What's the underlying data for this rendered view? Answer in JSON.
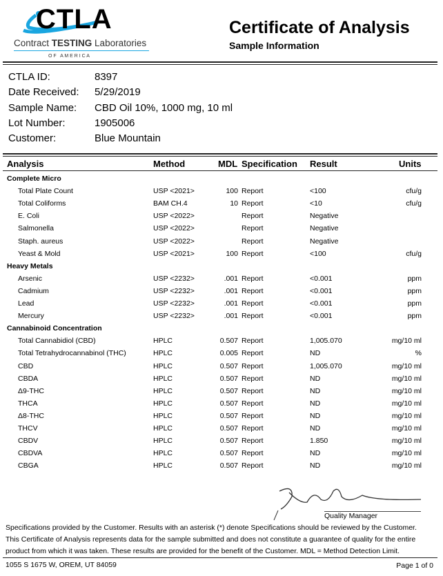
{
  "logo": {
    "brand": "CTLA",
    "line1a": "Contract ",
    "line1b": "TESTING",
    "line1c": " Laboratories",
    "line2": "O F   A M E R I C A",
    "accent": "#1aa6e0"
  },
  "header": {
    "title": "Certificate of Analysis",
    "subtitle": "Sample Information"
  },
  "info": [
    {
      "label": "CTLA ID:",
      "value": "8397"
    },
    {
      "label": "Date Received:",
      "value": "5/29/2019"
    },
    {
      "label": "Sample Name:",
      "value": "CBD Oil 10%, 1000 mg, 10 ml"
    },
    {
      "label": "Lot Number:",
      "value": "1905006"
    },
    {
      "label": "Customer:",
      "value": "Blue Mountain"
    }
  ],
  "table": {
    "headers": {
      "analysis": "Analysis",
      "method": "Method",
      "mdl": "MDL",
      "spec": "Specification",
      "result": "Result",
      "units": "Units"
    },
    "rows": [
      {
        "section": "Complete Micro"
      },
      {
        "a": "Total Plate Count",
        "m": "USP <2021>",
        "d": "100",
        "s": "Report",
        "r": "<100",
        "u": "cfu/g"
      },
      {
        "a": "Total Coliforms",
        "m": "BAM CH.4",
        "d": "10",
        "s": "Report",
        "r": "<10",
        "u": "cfu/g"
      },
      {
        "a": "E. Coli",
        "m": "USP <2022>",
        "d": "",
        "s": "Report",
        "r": "Negative",
        "u": ""
      },
      {
        "a": "Salmonella",
        "m": "USP <2022>",
        "d": "",
        "s": "Report",
        "r": "Negative",
        "u": ""
      },
      {
        "a": "Staph. aureus",
        "m": "USP <2022>",
        "d": "",
        "s": "Report",
        "r": "Negative",
        "u": ""
      },
      {
        "a": "Yeast & Mold",
        "m": "USP <2021>",
        "d": "100",
        "s": "Report",
        "r": "<100",
        "u": "cfu/g"
      },
      {
        "section": "Heavy Metals"
      },
      {
        "a": "Arsenic",
        "m": "USP <2232>",
        "d": ".001",
        "s": "Report",
        "r": "<0.001",
        "u": "ppm"
      },
      {
        "a": "Cadmium",
        "m": "USP <2232>",
        "d": ".001",
        "s": "Report",
        "r": "<0.001",
        "u": "ppm"
      },
      {
        "a": "Lead",
        "m": "USP <2232>",
        "d": ".001",
        "s": "Report",
        "r": "<0.001",
        "u": "ppm"
      },
      {
        "a": "Mercury",
        "m": "USP <2232>",
        "d": ".001",
        "s": "Report",
        "r": "<0.001",
        "u": "ppm"
      },
      {
        "section": "Cannabinoid Concentration"
      },
      {
        "a": "Total Cannabidiol (CBD)",
        "m": "HPLC",
        "d": "0.507",
        "s": "Report",
        "r": "1,005.070",
        "u": "mg/10 ml"
      },
      {
        "a": "Total Tetrahydrocannabinol (THC)",
        "m": "HPLC",
        "d": "0.005",
        "s": "Report",
        "r": "ND",
        "u": "%"
      },
      {
        "a": "CBD",
        "m": "HPLC",
        "d": "0.507",
        "s": "Report",
        "r": "1,005.070",
        "u": "mg/10 ml"
      },
      {
        "a": "CBDA",
        "m": "HPLC",
        "d": "0.507",
        "s": "Report",
        "r": "ND",
        "u": "mg/10 ml"
      },
      {
        "a": "Δ9-THC",
        "m": "HPLC",
        "d": "0.507",
        "s": "Report",
        "r": "ND",
        "u": "mg/10 ml"
      },
      {
        "a": "THCA",
        "m": "HPLC",
        "d": "0.507",
        "s": "Report",
        "r": "ND",
        "u": "mg/10 ml"
      },
      {
        "a": "Δ8-THC",
        "m": "HPLC",
        "d": "0.507",
        "s": "Report",
        "r": "ND",
        "u": "mg/10 ml"
      },
      {
        "a": "THCV",
        "m": "HPLC",
        "d": "0.507",
        "s": "Report",
        "r": "ND",
        "u": "mg/10 ml"
      },
      {
        "a": "CBDV",
        "m": "HPLC",
        "d": "0.507",
        "s": "Report",
        "r": "1.850",
        "u": "mg/10 ml"
      },
      {
        "a": "CBDVA",
        "m": "HPLC",
        "d": "0.507",
        "s": "Report",
        "r": "ND",
        "u": "mg/10 ml"
      },
      {
        "a": "CBGA",
        "m": "HPLC",
        "d": "0.507",
        "s": "Report",
        "r": "ND",
        "u": "mg/10 ml"
      }
    ]
  },
  "signature": {
    "title": "Quality Manager"
  },
  "footer": {
    "disclaimer": [
      "Specifications provided by the Customer. Results with an asterisk (*) denote Specifications should be reviewed by the Customer.",
      "This Certificate of Analysis represents data for the sample submitted and does not constitute a guarantee of quality for the entire",
      "product from which it was taken. These results are provided for the benefit of the Customer.  MDL = Method Detection Limit."
    ],
    "address": "1055 S 1675 W, OREM, UT 84059",
    "page": "Page 1 of 0"
  }
}
